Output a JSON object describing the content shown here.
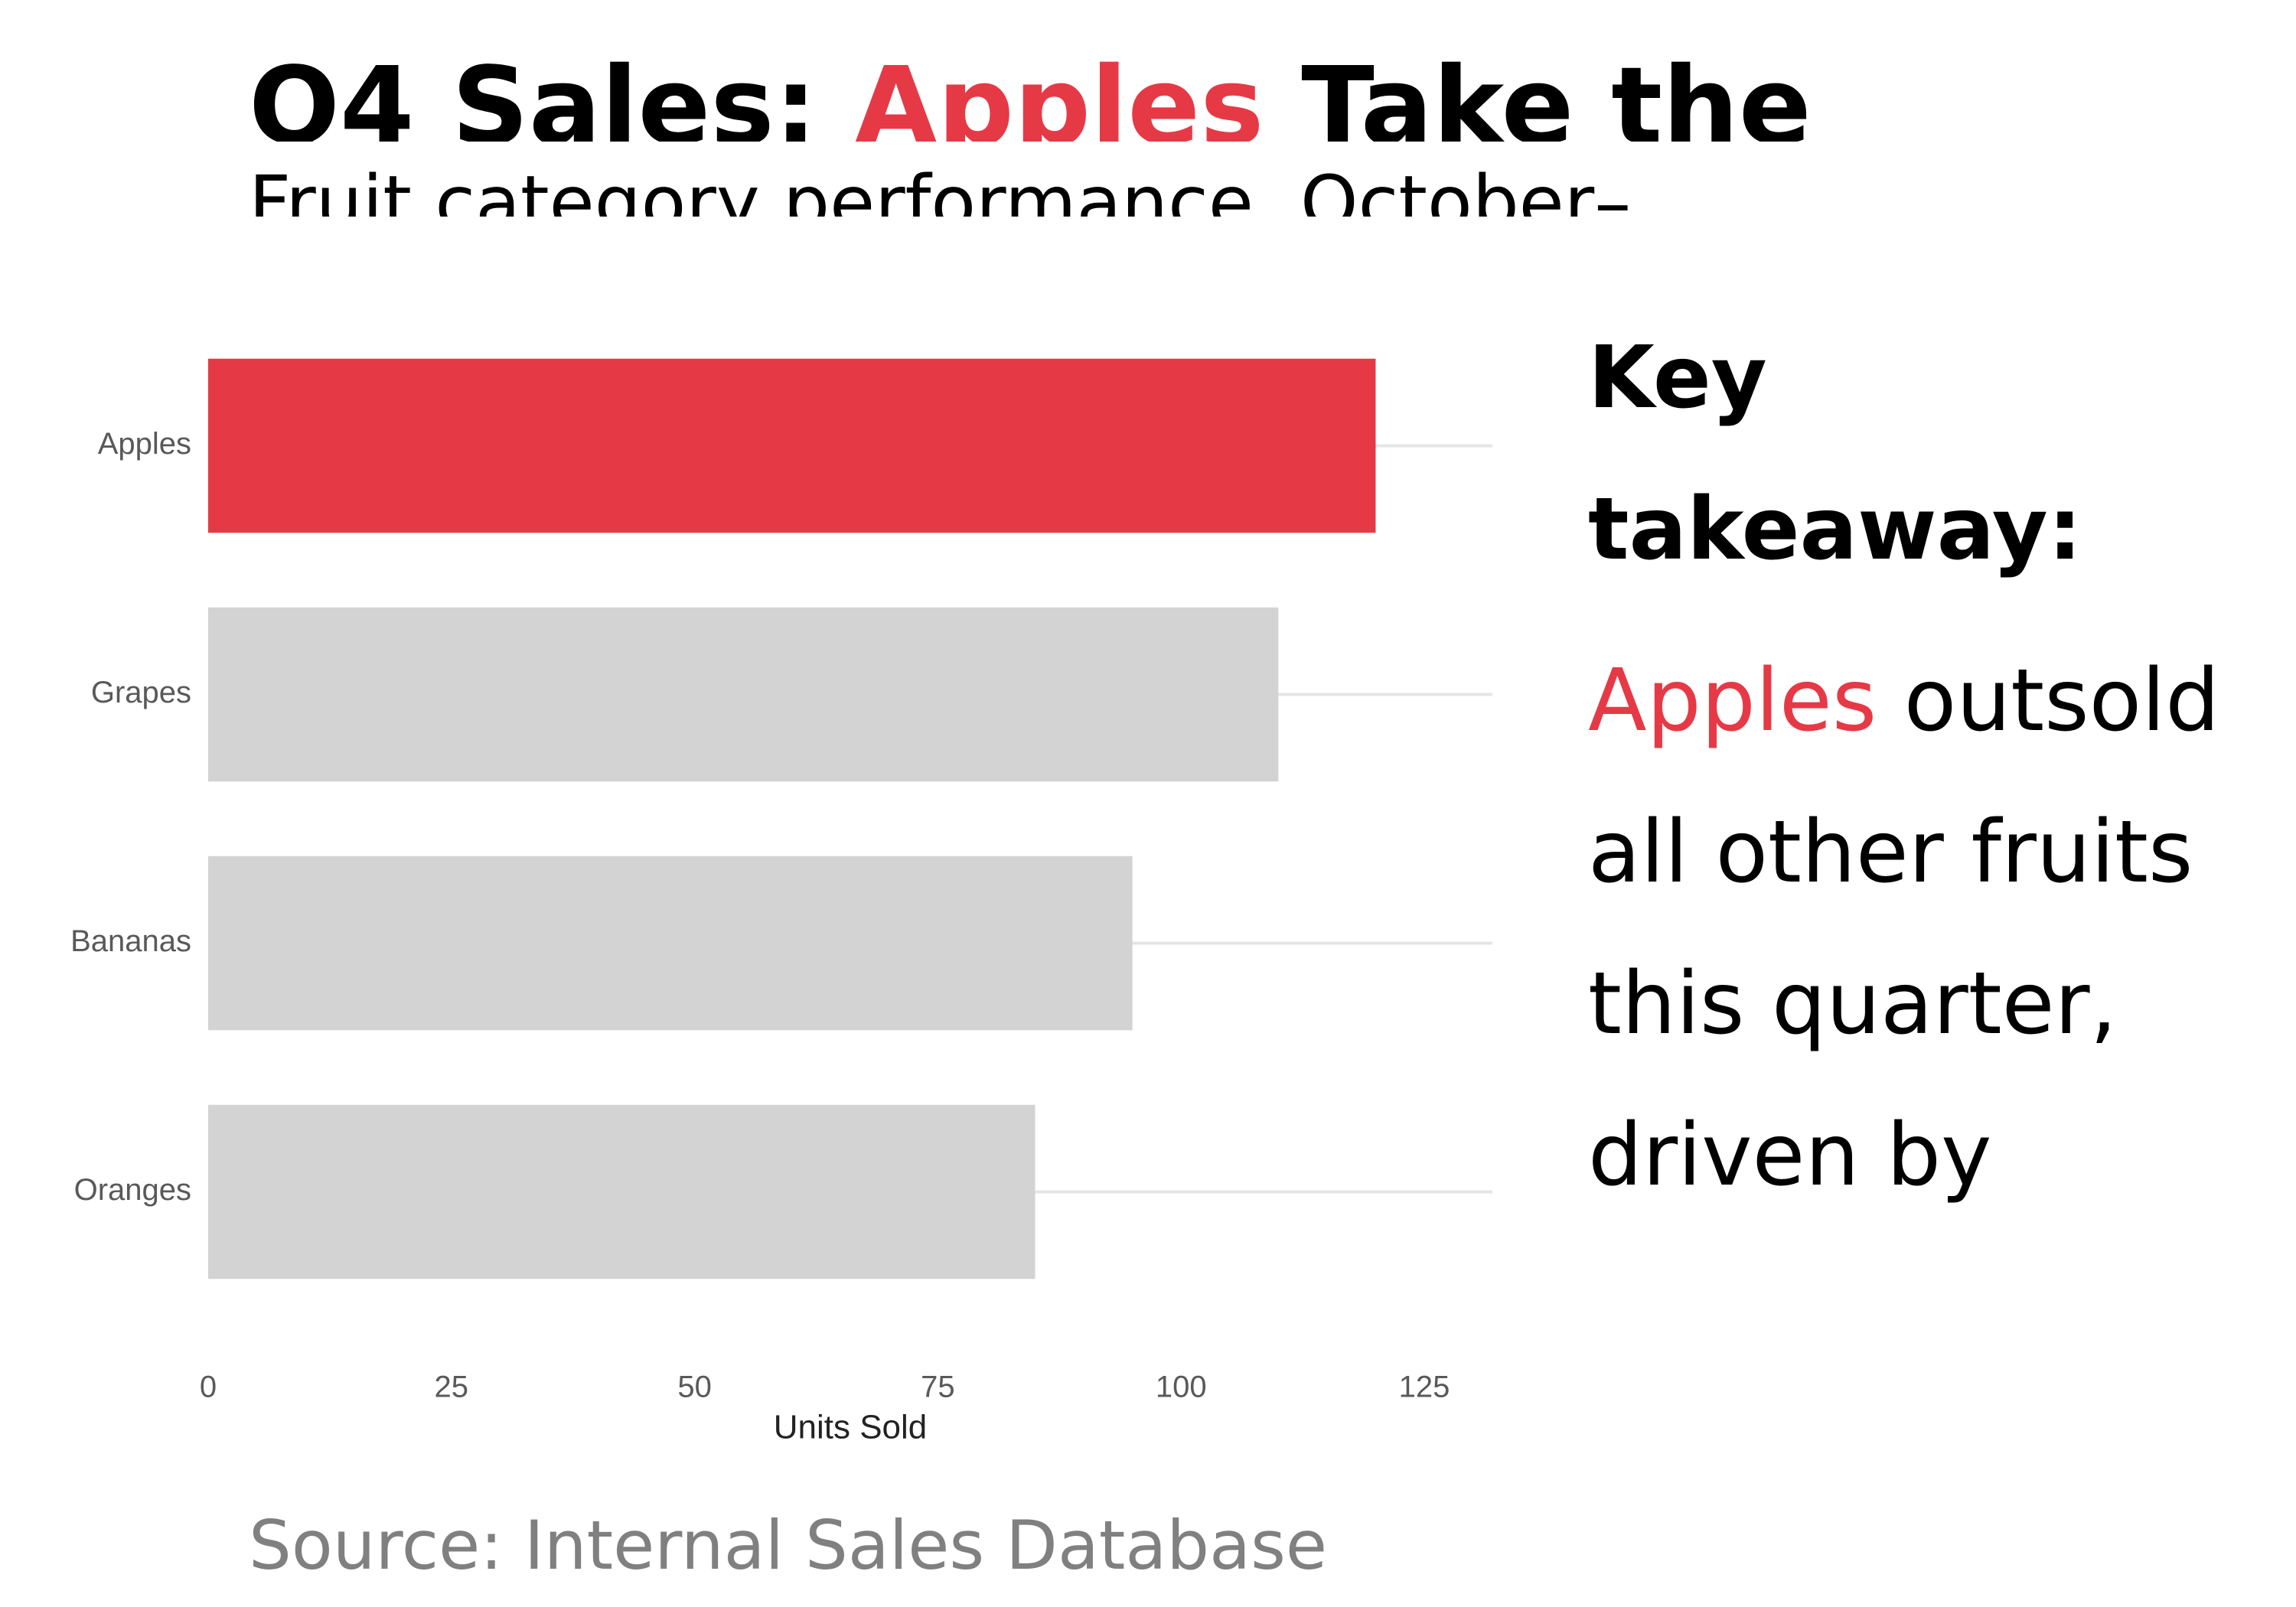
{
  "header": {
    "title_before": "Q4 Sales: ",
    "title_highlight": "Apples",
    "title_after": " Take the",
    "subtitle": "Fruit category performance, October–"
  },
  "takeaway": {
    "heading": "Key takeaway:",
    "highlight": "Apples",
    "body": " outsold all other fruits this quarter, driven by"
  },
  "footer": {
    "source": "Source: Internal Sales Database"
  },
  "colors": {
    "highlight": "#E63946",
    "muted_bar": "#D3D3D3",
    "gridline": "#E5E5E5",
    "tick_text": "#595959",
    "axis_title": "#222222",
    "source_text": "#808080"
  },
  "chart_data": {
    "type": "bar",
    "orientation": "horizontal",
    "categories": [
      "Apples",
      "Grapes",
      "Bananas",
      "Oranges"
    ],
    "values": [
      120,
      110,
      95,
      85
    ],
    "highlight_category": "Apples",
    "xlabel": "Units Sold",
    "ylabel": "",
    "xlim": [
      0,
      132
    ],
    "xticks": [
      0,
      25,
      50,
      75,
      100,
      125
    ],
    "grid": "horizontal-major",
    "legend": "none"
  }
}
